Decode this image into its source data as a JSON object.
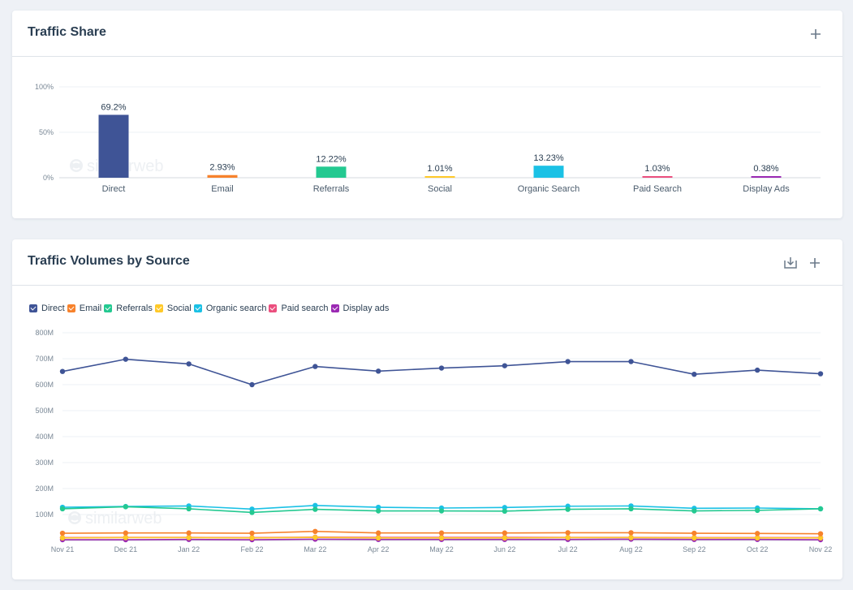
{
  "traffic_share": {
    "title": "Traffic Share",
    "icons": {
      "add": "plus-icon"
    },
    "watermark": "similarweb"
  },
  "traffic_volumes": {
    "title": "Traffic Volumes by Source",
    "icons": {
      "download": "download-icon",
      "add": "plus-icon"
    },
    "watermark": "similarweb"
  },
  "chart_data": [
    {
      "type": "bar",
      "title": "Traffic Share",
      "categories": [
        "Direct",
        "Email",
        "Referrals",
        "Social",
        "Organic Search",
        "Paid Search",
        "Display Ads"
      ],
      "values": [
        69.2,
        2.93,
        12.22,
        1.01,
        13.23,
        1.03,
        0.38
      ],
      "value_labels": [
        "69.2%",
        "2.93%",
        "12.22%",
        "1.01%",
        "13.23%",
        "1.03%",
        "0.38%"
      ],
      "colors": [
        "#3f5496",
        "#f7822c",
        "#24c991",
        "#ffc929",
        "#1bc1e5",
        "#eb4f7e",
        "#9b2ab3"
      ],
      "yticks": [
        0,
        50,
        100
      ],
      "ytick_labels": [
        "0%",
        "50%",
        "100%"
      ],
      "ylim": [
        0,
        100
      ],
      "grid": true
    },
    {
      "type": "line",
      "title": "Traffic Volumes by Source",
      "x": [
        "Nov 21",
        "Dec 21",
        "Jan 22",
        "Feb 22",
        "Mar 22",
        "Apr 22",
        "May 22",
        "Jun 22",
        "Jul 22",
        "Aug 22",
        "Sep 22",
        "Oct 22",
        "Nov 22"
      ],
      "yticks": [
        100,
        200,
        300,
        400,
        500,
        600,
        700,
        800
      ],
      "ytick_labels": [
        "100M",
        "200M",
        "300M",
        "400M",
        "500M",
        "600M",
        "700M",
        "800M"
      ],
      "ylim": [
        0,
        800
      ],
      "y_unit": "M",
      "grid": true,
      "legend_position": "top-left",
      "series": [
        {
          "name": "Direct",
          "color": "#3f5496",
          "values": [
            651,
            698,
            680,
            600,
            670,
            652,
            664,
            673,
            689,
            689,
            640,
            656,
            642
          ]
        },
        {
          "name": "Email",
          "color": "#f7822c",
          "values": [
            28,
            29,
            29,
            28,
            35,
            29,
            29,
            29,
            30,
            30,
            28,
            27,
            26
          ]
        },
        {
          "name": "Referrals",
          "color": "#24c991",
          "values": [
            122,
            130,
            122,
            108,
            120,
            114,
            114,
            113,
            120,
            122,
            114,
            116,
            122
          ]
        },
        {
          "name": "Social",
          "color": "#ffc929",
          "values": [
            10,
            11,
            11,
            10,
            12,
            10,
            10,
            10,
            11,
            11,
            10,
            10,
            10
          ]
        },
        {
          "name": "Organic search",
          "color": "#1bc1e5",
          "values": [
            128,
            131,
            133,
            121,
            135,
            128,
            125,
            127,
            132,
            133,
            124,
            125,
            122
          ]
        },
        {
          "name": "Paid search",
          "color": "#eb4f7e",
          "values": [
            11,
            12,
            12,
            11,
            13,
            12,
            12,
            12,
            12,
            12,
            11,
            11,
            11
          ]
        },
        {
          "name": "Display ads",
          "color": "#9b2ab3",
          "values": [
            3,
            3,
            4,
            3,
            5,
            4,
            4,
            4,
            4,
            5,
            4,
            4,
            3
          ]
        }
      ]
    }
  ]
}
